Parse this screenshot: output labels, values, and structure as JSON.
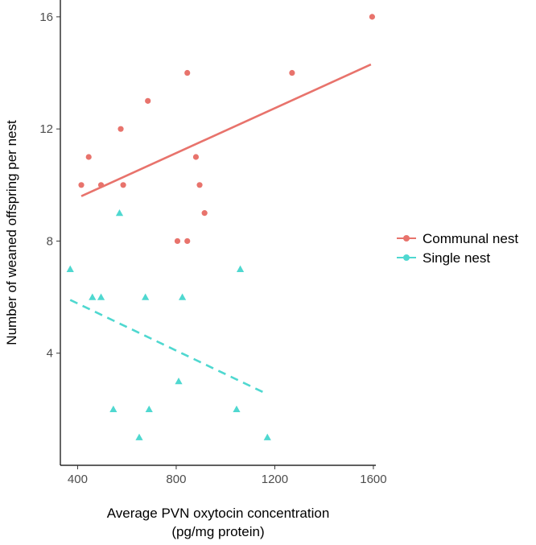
{
  "chart_data": {
    "type": "scatter",
    "title": "",
    "xlabel_line1": "Average PVN oxytocin concentration",
    "xlabel_line2": "(pg/mg protein)",
    "ylabel": "Number of weaned offspring per nest",
    "xlim": [
      330,
      1610
    ],
    "ylim": [
      0,
      16.6
    ],
    "x_ticks": [
      400,
      800,
      1200,
      1600
    ],
    "y_ticks": [
      4,
      8,
      12,
      16
    ],
    "grid": false,
    "legend_position": "right",
    "series": [
      {
        "name": "Communal nest",
        "color": "#e8736c",
        "marker": "circle",
        "line_style": "solid",
        "points": [
          {
            "x": 415,
            "y": 10
          },
          {
            "x": 445,
            "y": 11
          },
          {
            "x": 495,
            "y": 10
          },
          {
            "x": 575,
            "y": 12
          },
          {
            "x": 585,
            "y": 10
          },
          {
            "x": 685,
            "y": 13
          },
          {
            "x": 805,
            "y": 8
          },
          {
            "x": 845,
            "y": 14
          },
          {
            "x": 845,
            "y": 8
          },
          {
            "x": 880,
            "y": 11
          },
          {
            "x": 895,
            "y": 10
          },
          {
            "x": 915,
            "y": 9
          },
          {
            "x": 1270,
            "y": 14
          },
          {
            "x": 1595,
            "y": 16
          }
        ],
        "trend": {
          "x": [
            415,
            1590
          ],
          "y": [
            9.6,
            14.3
          ]
        }
      },
      {
        "name": "Single nest",
        "color": "#4fd8d0",
        "marker": "triangle",
        "line_style": "dashed",
        "points": [
          {
            "x": 370,
            "y": 7
          },
          {
            "x": 460,
            "y": 6
          },
          {
            "x": 495,
            "y": 6
          },
          {
            "x": 545,
            "y": 2
          },
          {
            "x": 570,
            "y": 9
          },
          {
            "x": 650,
            "y": 1
          },
          {
            "x": 675,
            "y": 6
          },
          {
            "x": 690,
            "y": 2
          },
          {
            "x": 810,
            "y": 3
          },
          {
            "x": 825,
            "y": 6
          },
          {
            "x": 1045,
            "y": 2
          },
          {
            "x": 1060,
            "y": 7
          },
          {
            "x": 1170,
            "y": 1
          }
        ],
        "trend": {
          "x": [
            370,
            1155
          ],
          "y": [
            5.9,
            2.6
          ]
        }
      }
    ]
  }
}
